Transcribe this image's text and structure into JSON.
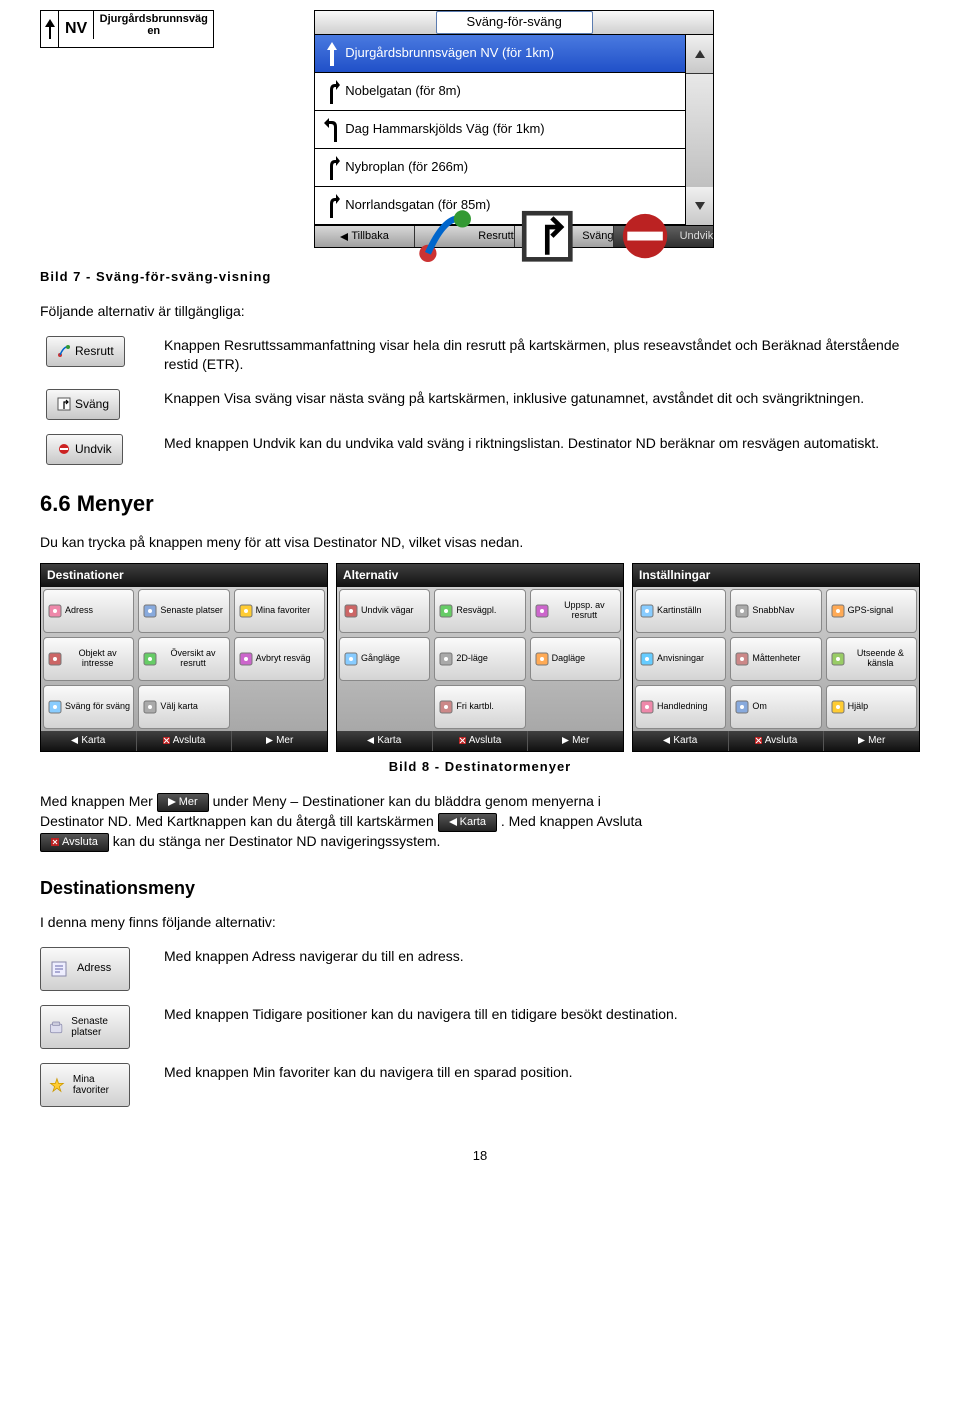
{
  "nv": {
    "dir": "NV",
    "street1": "Djurgårdsbrunnsväg",
    "street2": "en"
  },
  "turnlist": {
    "header": "Sväng-för-sväng",
    "rows": [
      {
        "label": "Djurgårdsbrunnsvägen NV (för 1km)",
        "selected": true,
        "arrow": "up"
      },
      {
        "label": "Nobelgatan (för 8m)",
        "arrow": "upright"
      },
      {
        "label": "Dag Hammarskjölds Väg (för 1km)",
        "arrow": "left"
      },
      {
        "label": "Nybroplan (för 266m)",
        "arrow": "upright"
      },
      {
        "label": "Norrlandsgatan (för 85m)",
        "arrow": "upright"
      }
    ],
    "footer": [
      "Tillbaka",
      "Resrutt",
      "Sväng",
      "Undvik"
    ]
  },
  "caption1": "Bild 7 - Sväng-för-sväng-visning",
  "intro": "Följande alternativ är tillgängliga:",
  "btns": {
    "resrutt": "Resrutt",
    "svang": "Sväng",
    "undvik": "Undvik",
    "mer": "Mer",
    "karta": "Karta",
    "avsluta": "Avsluta",
    "adress": "Adress",
    "senaste": "Senaste platser",
    "mina": "Mina favoriter"
  },
  "para_resrutt": "Knappen Resruttssammanfattning visar hela din resrutt på kartskärmen, plus reseavståndet och Beräknad återstående restid (ETR).",
  "para_svang": "Knappen Visa sväng visar nästa sväng på kartskärmen, inklusive gatunamnet, avståndet dit och svängriktningen.",
  "para_undvik": "Med knappen Undvik kan du undvika vald sväng i riktningslistan. Destinator ND beräknar om resvägen automatiskt.",
  "h_menyer": "6.6 Menyer",
  "p_menyer": "Du kan trycka på knappen meny för att visa Destinator ND, vilket visas nedan.",
  "menus": [
    {
      "title": "Destinationer",
      "cells": [
        "Adress",
        "Senaste platser",
        "Mina favoriter",
        "Objekt av intresse",
        "Översikt av resrutt",
        "Avbryt resväg",
        "Sväng för sväng",
        "Välj karta",
        ""
      ]
    },
    {
      "title": "Alternativ",
      "cells": [
        "Undvik vägar",
        "Resvägpl.",
        "Uppsp. av resrutt",
        "Gångläge",
        "2D-läge",
        "Dagläge",
        "",
        "Fri kartbl.",
        ""
      ]
    },
    {
      "title": "Inställningar",
      "cells": [
        "Kartinställn",
        "SnabbNav",
        "GPS-signal",
        "Anvisningar",
        "Måttenheter",
        "Utseende & känsla",
        "Handledning",
        "Om",
        "Hjälp"
      ]
    }
  ],
  "menu_footer": [
    "Karta",
    "Avsluta",
    "Mer"
  ],
  "caption2": "Bild 8 - Destinatormenyer",
  "p_mer1a": "Med knappen Mer",
  "p_mer1b": " under Meny – Destinationer kan du bläddra genom menyerna i ",
  "p_mer2a": "Destinator ND. Med Kartknappen kan du återgå till kartskärmen ",
  "p_mer2b": ". Med knappen Avsluta",
  "p_mer3": " kan du stänga ner Destinator ND navigeringssystem.",
  "h_destmeny": "Destinationsmeny",
  "p_destmeny": "I denna meny finns följande alternativ:",
  "p_adress": "Med knappen Adress navigerar du till en adress.",
  "p_tidigare": "Med knappen Tidigare positioner kan du navigera till en tidigare besökt destination.",
  "p_minfav": "Med knappen Min favoriter kan du navigera till en sparad position.",
  "page": "18"
}
